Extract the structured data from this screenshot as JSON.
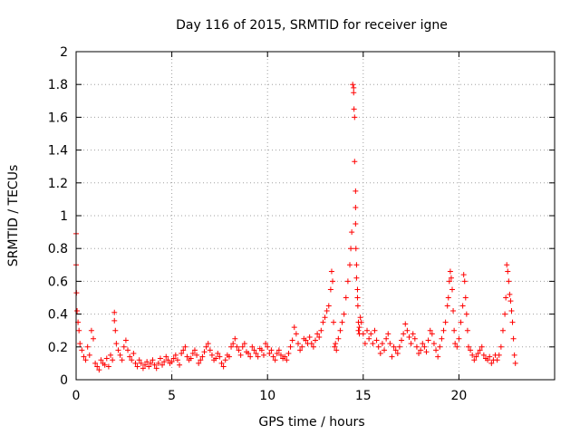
{
  "chart_data": {
    "type": "scatter",
    "title": "Day 116 of 2015, SRMTID for receiver igne",
    "xlabel": "GPS time / hours",
    "ylabel": "SRMTID / TECUs",
    "xlim": [
      0,
      25
    ],
    "ylim": [
      0,
      2
    ],
    "xticks": [
      0,
      5,
      10,
      15,
      20
    ],
    "yticks": [
      0,
      0.2,
      0.4,
      0.6,
      0.8,
      1,
      1.2,
      1.4,
      1.6,
      1.8,
      2
    ],
    "xtick_labels": [
      "0",
      "5",
      "10",
      "15",
      "20"
    ],
    "ytick_labels": [
      "0",
      "0.2",
      "0.4",
      "0.6",
      "0.8",
      "1",
      "1.2",
      "1.4",
      "1.6",
      "1.8",
      "2"
    ],
    "grid": true,
    "marker": "+",
    "color": "#ff0000",
    "series": [
      {
        "name": "SRMTID",
        "x": [
          0.0,
          0.0,
          0.02,
          0.05,
          0.1,
          0.15,
          0.2,
          0.3,
          0.4,
          0.5,
          0.6,
          0.7,
          0.8,
          0.9,
          1.0,
          1.1,
          1.2,
          1.3,
          1.4,
          1.5,
          1.6,
          1.7,
          1.8,
          1.9,
          2.0,
          2.0,
          2.05,
          2.1,
          2.2,
          2.3,
          2.4,
          2.5,
          2.6,
          2.7,
          2.8,
          2.9,
          3.0,
          3.1,
          3.2,
          3.3,
          3.4,
          3.5,
          3.6,
          3.7,
          3.8,
          3.9,
          4.0,
          4.1,
          4.2,
          4.3,
          4.4,
          4.5,
          4.6,
          4.7,
          4.8,
          4.9,
          5.0,
          5.1,
          5.2,
          5.3,
          5.4,
          5.5,
          5.6,
          5.7,
          5.8,
          5.9,
          6.0,
          6.1,
          6.2,
          6.3,
          6.4,
          6.5,
          6.6,
          6.7,
          6.8,
          6.9,
          7.0,
          7.1,
          7.2,
          7.3,
          7.4,
          7.5,
          7.6,
          7.7,
          7.8,
          7.9,
          8.0,
          8.1,
          8.2,
          8.3,
          8.4,
          8.5,
          8.6,
          8.7,
          8.8,
          8.9,
          9.0,
          9.1,
          9.2,
          9.3,
          9.4,
          9.5,
          9.6,
          9.7,
          9.8,
          9.9,
          10.0,
          10.1,
          10.2,
          10.3,
          10.4,
          10.5,
          10.6,
          10.7,
          10.8,
          10.9,
          11.0,
          11.1,
          11.2,
          11.3,
          11.4,
          11.5,
          11.6,
          11.7,
          11.8,
          11.9,
          12.0,
          12.1,
          12.2,
          12.3,
          12.4,
          12.5,
          12.6,
          12.7,
          12.8,
          12.9,
          13.0,
          13.1,
          13.2,
          13.3,
          13.35,
          13.4,
          13.45,
          13.5,
          13.55,
          13.6,
          13.7,
          13.8,
          13.9,
          14.0,
          14.1,
          14.2,
          14.3,
          14.35,
          14.4,
          14.45,
          14.5,
          14.5,
          14.52,
          14.55,
          14.55,
          14.6,
          14.6,
          14.6,
          14.62,
          14.65,
          14.65,
          14.7,
          14.7,
          14.72,
          14.75,
          14.75,
          14.8,
          14.8,
          14.85,
          14.9,
          15.0,
          15.1,
          15.2,
          15.3,
          15.4,
          15.5,
          15.6,
          15.7,
          15.8,
          15.9,
          16.0,
          16.1,
          16.2,
          16.3,
          16.4,
          16.5,
          16.6,
          16.7,
          16.8,
          16.9,
          17.0,
          17.1,
          17.2,
          17.3,
          17.4,
          17.5,
          17.6,
          17.7,
          17.8,
          17.9,
          18.0,
          18.1,
          18.2,
          18.3,
          18.4,
          18.5,
          18.6,
          18.7,
          18.8,
          18.9,
          19.0,
          19.1,
          19.2,
          19.3,
          19.4,
          19.45,
          19.5,
          19.55,
          19.6,
          19.65,
          19.7,
          19.75,
          19.8,
          19.9,
          20.0,
          20.1,
          20.2,
          20.25,
          20.3,
          20.35,
          20.4,
          20.45,
          20.5,
          20.6,
          20.7,
          20.8,
          20.9,
          21.0,
          21.1,
          21.2,
          21.3,
          21.4,
          21.5,
          21.6,
          21.7,
          21.8,
          21.9,
          22.0,
          22.1,
          22.2,
          22.3,
          22.4,
          22.45,
          22.5,
          22.55,
          22.6,
          22.65,
          22.7,
          22.75,
          22.8,
          22.85,
          22.9,
          22.95
        ],
        "y": [
          0.89,
          0.7,
          0.53,
          0.42,
          0.35,
          0.3,
          0.22,
          0.18,
          0.14,
          0.12,
          0.2,
          0.15,
          0.3,
          0.25,
          0.1,
          0.08,
          0.06,
          0.12,
          0.1,
          0.09,
          0.13,
          0.08,
          0.15,
          0.12,
          0.41,
          0.36,
          0.3,
          0.22,
          0.18,
          0.15,
          0.12,
          0.2,
          0.24,
          0.18,
          0.14,
          0.12,
          0.16,
          0.1,
          0.08,
          0.12,
          0.1,
          0.07,
          0.09,
          0.11,
          0.08,
          0.1,
          0.12,
          0.09,
          0.07,
          0.1,
          0.13,
          0.09,
          0.11,
          0.14,
          0.12,
          0.1,
          0.11,
          0.13,
          0.15,
          0.12,
          0.09,
          0.16,
          0.18,
          0.2,
          0.14,
          0.12,
          0.13,
          0.16,
          0.18,
          0.15,
          0.1,
          0.12,
          0.14,
          0.17,
          0.2,
          0.22,
          0.18,
          0.15,
          0.12,
          0.13,
          0.16,
          0.14,
          0.1,
          0.08,
          0.12,
          0.15,
          0.14,
          0.2,
          0.22,
          0.25,
          0.2,
          0.18,
          0.15,
          0.2,
          0.22,
          0.17,
          0.16,
          0.14,
          0.2,
          0.18,
          0.16,
          0.14,
          0.19,
          0.18,
          0.15,
          0.22,
          0.2,
          0.16,
          0.18,
          0.14,
          0.12,
          0.16,
          0.18,
          0.15,
          0.13,
          0.14,
          0.12,
          0.16,
          0.2,
          0.24,
          0.32,
          0.28,
          0.22,
          0.18,
          0.2,
          0.25,
          0.24,
          0.22,
          0.26,
          0.22,
          0.2,
          0.24,
          0.28,
          0.26,
          0.3,
          0.35,
          0.38,
          0.42,
          0.45,
          0.55,
          0.66,
          0.6,
          0.35,
          0.2,
          0.22,
          0.18,
          0.25,
          0.3,
          0.35,
          0.4,
          0.5,
          0.6,
          0.7,
          0.8,
          0.9,
          1.8,
          1.78,
          1.75,
          1.65,
          1.6,
          1.33,
          1.15,
          1.05,
          0.95,
          0.8,
          0.7,
          0.62,
          0.55,
          0.5,
          0.45,
          0.35,
          0.3,
          0.28,
          0.32,
          0.38,
          0.35,
          0.28,
          0.22,
          0.3,
          0.25,
          0.28,
          0.22,
          0.3,
          0.24,
          0.2,
          0.16,
          0.22,
          0.18,
          0.25,
          0.28,
          0.22,
          0.14,
          0.2,
          0.18,
          0.16,
          0.2,
          0.24,
          0.28,
          0.34,
          0.3,
          0.26,
          0.22,
          0.28,
          0.25,
          0.2,
          0.16,
          0.18,
          0.22,
          0.2,
          0.17,
          0.24,
          0.3,
          0.28,
          0.22,
          0.18,
          0.14,
          0.2,
          0.25,
          0.3,
          0.35,
          0.45,
          0.5,
          0.6,
          0.66,
          0.62,
          0.55,
          0.42,
          0.3,
          0.22,
          0.2,
          0.25,
          0.35,
          0.45,
          0.64,
          0.6,
          0.5,
          0.4,
          0.3,
          0.2,
          0.18,
          0.15,
          0.12,
          0.14,
          0.16,
          0.18,
          0.2,
          0.15,
          0.13,
          0.12,
          0.14,
          0.1,
          0.12,
          0.15,
          0.12,
          0.15,
          0.2,
          0.3,
          0.4,
          0.5,
          0.7,
          0.66,
          0.6,
          0.52,
          0.48,
          0.42,
          0.35,
          0.25,
          0.15,
          0.1
        ]
      }
    ]
  }
}
